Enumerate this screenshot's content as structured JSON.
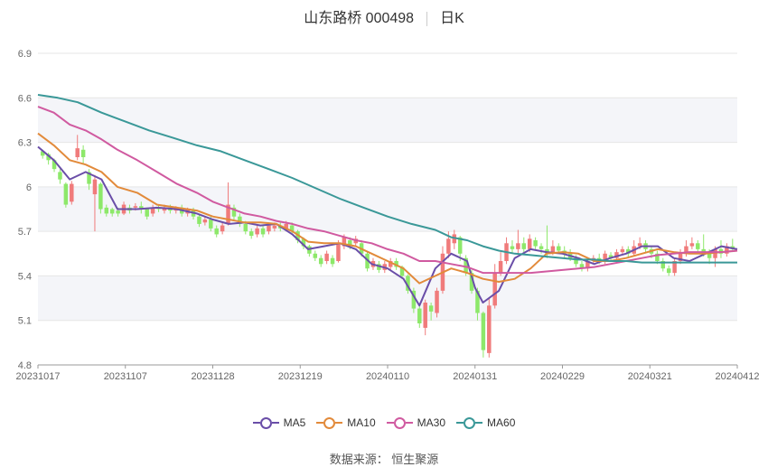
{
  "header": {
    "name_code": "山东路桥 000498",
    "period": "日K"
  },
  "source_text": "数据来源：  恒生聚源",
  "chart_data": {
    "type": "candlestick",
    "title": "山东路桥 000498",
    "ylim": [
      4.8,
      6.9
    ],
    "y_ticks": [
      "6.9",
      "6.6",
      "6.3",
      "6",
      "5.7",
      "5.4",
      "5.1",
      "4.8"
    ],
    "x_ticks": [
      "20231017",
      "20231107",
      "20231128",
      "20231219",
      "20240110",
      "20240131",
      "20240229",
      "20240321",
      "20240412"
    ],
    "num_days": 120,
    "grid": true,
    "legend_position": "bottom",
    "colors": {
      "up": "#f07b7b",
      "down": "#8de86a",
      "MA5": "#6a4ea8",
      "MA10": "#e28a3a",
      "MA30": "#d05aa0",
      "MA60": "#3a9898"
    },
    "series": [
      {
        "name": "MA5",
        "points": [
          [
            0,
            6.27
          ],
          [
            4,
            6.18
          ],
          [
            8,
            6.05
          ],
          [
            12,
            6.1
          ],
          [
            16,
            6.05
          ],
          [
            20,
            5.85
          ],
          [
            25,
            5.85
          ],
          [
            30,
            5.86
          ],
          [
            35,
            5.85
          ],
          [
            40,
            5.82
          ],
          [
            44,
            5.78
          ],
          [
            48,
            5.75
          ],
          [
            52,
            5.76
          ],
          [
            56,
            5.74
          ],
          [
            60,
            5.75
          ],
          [
            64,
            5.68
          ],
          [
            68,
            5.58
          ],
          [
            72,
            5.6
          ],
          [
            76,
            5.62
          ],
          [
            80,
            5.58
          ],
          [
            84,
            5.48
          ],
          [
            88,
            5.45
          ],
          [
            92,
            5.38
          ],
          [
            96,
            5.2
          ],
          [
            100,
            5.45
          ],
          [
            104,
            5.55
          ],
          [
            108,
            5.5
          ],
          [
            110,
            5.32
          ],
          [
            112,
            5.22
          ],
          [
            116,
            5.3
          ],
          [
            120,
            5.52
          ],
          [
            124,
            5.58
          ],
          [
            128,
            5.56
          ],
          [
            132,
            5.55
          ],
          [
            136,
            5.52
          ],
          [
            140,
            5.48
          ],
          [
            144,
            5.52
          ],
          [
            148,
            5.55
          ],
          [
            152,
            5.6
          ],
          [
            156,
            5.6
          ],
          [
            160,
            5.52
          ],
          [
            164,
            5.5
          ],
          [
            168,
            5.55
          ],
          [
            172,
            5.6
          ],
          [
            176,
            5.58
          ]
        ]
      },
      {
        "name": "MA10",
        "points": [
          [
            0,
            6.36
          ],
          [
            4,
            6.28
          ],
          [
            8,
            6.18
          ],
          [
            12,
            6.15
          ],
          [
            16,
            6.1
          ],
          [
            20,
            6.0
          ],
          [
            25,
            5.96
          ],
          [
            30,
            5.88
          ],
          [
            35,
            5.86
          ],
          [
            40,
            5.84
          ],
          [
            44,
            5.8
          ],
          [
            48,
            5.78
          ],
          [
            52,
            5.76
          ],
          [
            56,
            5.76
          ],
          [
            60,
            5.75
          ],
          [
            64,
            5.7
          ],
          [
            68,
            5.63
          ],
          [
            72,
            5.62
          ],
          [
            76,
            5.62
          ],
          [
            80,
            5.6
          ],
          [
            84,
            5.55
          ],
          [
            88,
            5.5
          ],
          [
            92,
            5.45
          ],
          [
            96,
            5.35
          ],
          [
            100,
            5.4
          ],
          [
            104,
            5.45
          ],
          [
            108,
            5.42
          ],
          [
            112,
            5.38
          ],
          [
            116,
            5.36
          ],
          [
            120,
            5.38
          ],
          [
            124,
            5.45
          ],
          [
            128,
            5.55
          ],
          [
            132,
            5.56
          ],
          [
            136,
            5.55
          ],
          [
            140,
            5.5
          ],
          [
            144,
            5.5
          ],
          [
            148,
            5.52
          ],
          [
            152,
            5.55
          ],
          [
            156,
            5.58
          ],
          [
            160,
            5.56
          ],
          [
            164,
            5.55
          ],
          [
            168,
            5.55
          ],
          [
            172,
            5.56
          ],
          [
            176,
            5.57
          ]
        ]
      },
      {
        "name": "MA30",
        "points": [
          [
            0,
            6.54
          ],
          [
            4,
            6.5
          ],
          [
            8,
            6.42
          ],
          [
            12,
            6.38
          ],
          [
            16,
            6.32
          ],
          [
            20,
            6.25
          ],
          [
            25,
            6.18
          ],
          [
            30,
            6.1
          ],
          [
            35,
            6.02
          ],
          [
            40,
            5.96
          ],
          [
            44,
            5.9
          ],
          [
            48,
            5.86
          ],
          [
            52,
            5.82
          ],
          [
            56,
            5.8
          ],
          [
            60,
            5.77
          ],
          [
            64,
            5.75
          ],
          [
            68,
            5.72
          ],
          [
            72,
            5.7
          ],
          [
            76,
            5.67
          ],
          [
            80,
            5.64
          ],
          [
            84,
            5.62
          ],
          [
            88,
            5.58
          ],
          [
            92,
            5.55
          ],
          [
            96,
            5.5
          ],
          [
            100,
            5.5
          ],
          [
            104,
            5.48
          ],
          [
            108,
            5.46
          ],
          [
            112,
            5.42
          ],
          [
            116,
            5.42
          ],
          [
            120,
            5.42
          ],
          [
            124,
            5.42
          ],
          [
            128,
            5.43
          ],
          [
            132,
            5.44
          ],
          [
            136,
            5.45
          ],
          [
            140,
            5.46
          ],
          [
            144,
            5.48
          ],
          [
            148,
            5.5
          ],
          [
            152,
            5.52
          ],
          [
            156,
            5.54
          ],
          [
            160,
            5.55
          ],
          [
            164,
            5.56
          ],
          [
            168,
            5.56
          ],
          [
            172,
            5.56
          ],
          [
            176,
            5.57
          ]
        ]
      },
      {
        "name": "MA60",
        "points": [
          [
            0,
            6.62
          ],
          [
            5,
            6.6
          ],
          [
            10,
            6.57
          ],
          [
            16,
            6.5
          ],
          [
            22,
            6.44
          ],
          [
            28,
            6.38
          ],
          [
            34,
            6.33
          ],
          [
            40,
            6.28
          ],
          [
            46,
            6.24
          ],
          [
            52,
            6.18
          ],
          [
            58,
            6.12
          ],
          [
            64,
            6.06
          ],
          [
            70,
            5.99
          ],
          [
            76,
            5.92
          ],
          [
            82,
            5.86
          ],
          [
            88,
            5.8
          ],
          [
            94,
            5.75
          ],
          [
            100,
            5.71
          ],
          [
            104,
            5.66
          ],
          [
            108,
            5.64
          ],
          [
            112,
            5.6
          ],
          [
            116,
            5.57
          ],
          [
            120,
            5.55
          ],
          [
            124,
            5.54
          ],
          [
            128,
            5.53
          ],
          [
            132,
            5.52
          ],
          [
            136,
            5.51
          ],
          [
            140,
            5.51
          ],
          [
            144,
            5.5
          ],
          [
            148,
            5.5
          ],
          [
            152,
            5.49
          ],
          [
            156,
            5.49
          ],
          [
            160,
            5.49
          ],
          [
            164,
            5.49
          ],
          [
            168,
            5.49
          ],
          [
            172,
            5.49
          ],
          [
            176,
            5.49
          ]
        ]
      }
    ],
    "candles": [
      [
        6.24,
        6.21,
        6.25,
        6.19
      ],
      [
        6.22,
        6.18,
        6.23,
        6.15
      ],
      [
        6.18,
        6.12,
        6.19,
        6.1
      ],
      [
        6.1,
        6.05,
        6.12,
        6.02
      ],
      [
        6.02,
        5.88,
        6.03,
        5.86
      ],
      [
        5.9,
        6.02,
        6.04,
        5.88
      ],
      [
        6.2,
        6.26,
        6.35,
        6.18
      ],
      [
        6.25,
        6.2,
        6.28,
        6.15
      ],
      [
        6.1,
        6.02,
        6.12,
        5.98
      ],
      [
        5.95,
        6.05,
        6.08,
        5.7
      ],
      [
        6.02,
        5.85,
        6.03,
        5.82
      ],
      [
        5.86,
        5.82,
        5.88,
        5.8
      ],
      [
        5.85,
        5.82,
        5.86,
        5.8
      ],
      [
        5.84,
        5.82,
        5.86,
        5.8
      ],
      [
        5.82,
        5.88,
        5.9,
        5.81
      ],
      [
        5.86,
        5.84,
        5.88,
        5.82
      ],
      [
        5.86,
        5.87,
        5.89,
        5.84
      ],
      [
        5.87,
        5.85,
        5.9,
        5.82
      ],
      [
        5.85,
        5.8,
        5.86,
        5.78
      ],
      [
        5.82,
        5.86,
        5.88,
        5.8
      ],
      [
        5.86,
        5.85,
        5.88,
        5.83
      ],
      [
        5.84,
        5.86,
        5.88,
        5.82
      ],
      [
        5.86,
        5.84,
        5.88,
        5.82
      ],
      [
        5.84,
        5.86,
        5.87,
        5.82
      ],
      [
        5.86,
        5.82,
        5.88,
        5.8
      ],
      [
        5.82,
        5.85,
        5.86,
        5.8
      ],
      [
        5.84,
        5.8,
        5.86,
        5.78
      ],
      [
        5.8,
        5.75,
        5.82,
        5.73
      ],
      [
        5.76,
        5.78,
        5.8,
        5.74
      ],
      [
        5.78,
        5.72,
        5.8,
        5.7
      ],
      [
        5.72,
        5.68,
        5.74,
        5.66
      ],
      [
        5.7,
        5.74,
        5.76,
        5.68
      ],
      [
        5.75,
        5.88,
        6.03,
        5.74
      ],
      [
        5.86,
        5.8,
        5.88,
        5.78
      ],
      [
        5.8,
        5.75,
        5.82,
        5.73
      ],
      [
        5.75,
        5.7,
        5.77,
        5.68
      ],
      [
        5.7,
        5.67,
        5.72,
        5.65
      ],
      [
        5.68,
        5.72,
        5.74,
        5.66
      ],
      [
        5.72,
        5.68,
        5.74,
        5.66
      ],
      [
        5.7,
        5.74,
        5.76,
        5.68
      ],
      [
        5.72,
        5.74,
        5.76,
        5.7
      ],
      [
        5.74,
        5.72,
        5.76,
        5.7
      ],
      [
        5.72,
        5.75,
        5.77,
        5.7
      ],
      [
        5.74,
        5.7,
        5.76,
        5.68
      ],
      [
        5.7,
        5.64,
        5.71,
        5.62
      ],
      [
        5.65,
        5.6,
        5.66,
        5.58
      ],
      [
        5.6,
        5.55,
        5.61,
        5.53
      ],
      [
        5.55,
        5.52,
        5.57,
        5.5
      ],
      [
        5.52,
        5.48,
        5.54,
        5.46
      ],
      [
        5.5,
        5.55,
        5.57,
        5.48
      ],
      [
        5.52,
        5.48,
        5.54,
        5.46
      ],
      [
        5.5,
        5.62,
        5.64,
        5.49
      ],
      [
        5.6,
        5.66,
        5.68,
        5.58
      ],
      [
        5.64,
        5.6,
        5.66,
        5.58
      ],
      [
        5.62,
        5.65,
        5.67,
        5.6
      ],
      [
        5.62,
        5.55,
        5.64,
        5.53
      ],
      [
        5.55,
        5.45,
        5.56,
        5.43
      ],
      [
        5.46,
        5.5,
        5.52,
        5.44
      ],
      [
        5.48,
        5.44,
        5.5,
        5.42
      ],
      [
        5.44,
        5.48,
        5.5,
        5.42
      ],
      [
        5.46,
        5.5,
        5.52,
        5.44
      ],
      [
        5.5,
        5.46,
        5.52,
        5.44
      ],
      [
        5.46,
        5.4,
        5.47,
        5.38
      ],
      [
        5.4,
        5.3,
        5.41,
        5.28
      ],
      [
        5.3,
        5.18,
        5.32,
        5.15
      ],
      [
        5.18,
        5.08,
        5.2,
        5.05
      ],
      [
        5.05,
        5.22,
        5.24,
        5.0
      ],
      [
        5.2,
        5.16,
        5.22,
        5.1
      ],
      [
        5.15,
        5.3,
        5.32,
        5.12
      ],
      [
        5.3,
        5.55,
        5.6,
        5.28
      ],
      [
        5.55,
        5.65,
        5.7,
        5.52
      ],
      [
        5.62,
        5.68,
        5.71,
        5.58
      ],
      [
        5.66,
        5.55,
        5.67,
        5.5
      ],
      [
        5.52,
        5.42,
        5.54,
        5.4
      ],
      [
        5.42,
        5.3,
        5.44,
        5.28
      ],
      [
        5.3,
        5.15,
        5.32,
        5.1
      ],
      [
        5.15,
        4.9,
        5.16,
        4.85
      ],
      [
        4.88,
        5.2,
        5.25,
        4.85
      ],
      [
        5.2,
        5.42,
        5.48,
        5.18
      ],
      [
        5.42,
        5.5,
        5.56,
        5.4
      ],
      [
        5.5,
        5.62,
        5.66,
        5.48
      ],
      [
        5.6,
        5.58,
        5.64,
        5.55
      ],
      [
        5.58,
        5.62,
        5.71,
        5.55
      ],
      [
        5.62,
        5.58,
        5.66,
        5.56
      ],
      [
        5.58,
        5.65,
        5.68,
        5.56
      ],
      [
        5.64,
        5.6,
        5.66,
        5.58
      ],
      [
        5.6,
        5.58,
        5.62,
        5.55
      ],
      [
        5.58,
        5.55,
        5.74,
        5.52
      ],
      [
        5.56,
        5.6,
        5.64,
        5.54
      ],
      [
        5.6,
        5.57,
        5.62,
        5.55
      ],
      [
        5.57,
        5.55,
        5.6,
        5.52
      ],
      [
        5.55,
        5.52,
        5.58,
        5.5
      ],
      [
        5.52,
        5.48,
        5.54,
        5.46
      ],
      [
        5.48,
        5.45,
        5.5,
        5.43
      ],
      [
        5.45,
        5.5,
        5.52,
        5.43
      ],
      [
        5.5,
        5.52,
        5.54,
        5.48
      ],
      [
        5.52,
        5.5,
        5.55,
        5.48
      ],
      [
        5.5,
        5.55,
        5.57,
        5.48
      ],
      [
        5.54,
        5.52,
        5.56,
        5.5
      ],
      [
        5.52,
        5.56,
        5.58,
        5.5
      ],
      [
        5.56,
        5.58,
        5.6,
        5.54
      ],
      [
        5.58,
        5.55,
        5.6,
        5.53
      ],
      [
        5.55,
        5.6,
        5.64,
        5.53
      ],
      [
        5.6,
        5.62,
        5.66,
        5.58
      ],
      [
        5.62,
        5.58,
        5.64,
        5.56
      ],
      [
        5.58,
        5.55,
        5.6,
        5.52
      ],
      [
        5.55,
        5.5,
        5.57,
        5.48
      ],
      [
        5.5,
        5.45,
        5.52,
        5.43
      ],
      [
        5.45,
        5.42,
        5.47,
        5.4
      ],
      [
        5.42,
        5.5,
        5.52,
        5.4
      ],
      [
        5.5,
        5.55,
        5.58,
        5.48
      ],
      [
        5.55,
        5.6,
        5.64,
        5.53
      ],
      [
        5.6,
        5.62,
        5.66,
        5.58
      ],
      [
        5.62,
        5.58,
        5.64,
        5.56
      ],
      [
        5.58,
        5.55,
        5.68,
        5.53
      ],
      [
        5.55,
        5.52,
        5.58,
        5.48
      ],
      [
        5.52,
        5.58,
        5.6,
        5.46
      ],
      [
        5.58,
        5.55,
        5.64,
        5.52
      ],
      [
        5.55,
        5.6,
        5.62,
        5.53
      ],
      [
        5.6,
        5.58,
        5.65,
        5.56
      ]
    ]
  }
}
